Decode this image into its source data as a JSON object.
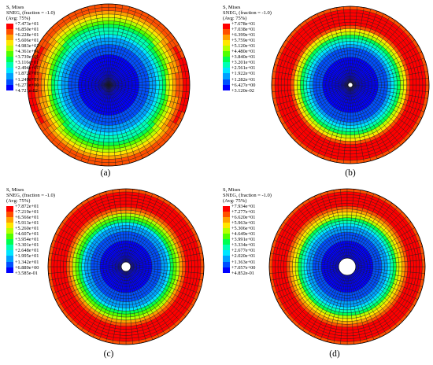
{
  "colors": [
    "#0000ff",
    "#0050ff",
    "#00a0ff",
    "#00e6ff",
    "#00ffb4",
    "#00ff50",
    "#50ff00",
    "#b4ff00",
    "#ffe600",
    "#ffa000",
    "#ff5000",
    "#ff0000"
  ],
  "panels": [
    {
      "id": "a",
      "caption": "(a)",
      "legend": {
        "line1": "S, Mises",
        "line2": "SNEG, (fraction = -1.0)",
        "line3": "(Avg: 75%)",
        "values": [
          "+7.473e+01",
          "+6.850e+01",
          "+6.228e+01",
          "+5.606e+01",
          "+4.983e+01",
          "+4.361e+01",
          "+3.739e+01",
          "+3.116e+01",
          "+2.494e+01",
          "+1.872e+01",
          "+1.249e+01",
          "+6.271e+00",
          "+4.721e-02"
        ]
      },
      "hole_radius_fraction": 0,
      "field": "edge_with_side_lobes"
    },
    {
      "id": "b",
      "caption": "(b)",
      "legend": {
        "line1": "S, Mises",
        "line2": "SNEG, (fraction = -1.0)",
        "line3": "(Avg: 75%)",
        "values": [
          "+7.678e+01",
          "+7.038e+01",
          "+6.399e+01",
          "+5.759e+01",
          "+5.120e+01",
          "+4.480e+01",
          "+3.840e+01",
          "+3.201e+01",
          "+2.561e+01",
          "+1.922e+01",
          "+1.282e+01",
          "+6.427e+00",
          "+3.120e-02"
        ]
      },
      "hole_radius_fraction": 0.03,
      "field": "ring"
    },
    {
      "id": "c",
      "caption": "(c)",
      "legend": {
        "line1": "S, Mises",
        "line2": "SNEG, (fraction = -1.0)",
        "line3": "(Avg: 75%)",
        "values": [
          "+7.872e+01",
          "+7.219e+01",
          "+6.566e+01",
          "+5.913e+01",
          "+5.260e+01",
          "+4.607e+01",
          "+3.954e+01",
          "+3.301e+01",
          "+2.648e+01",
          "+1.995e+01",
          "+1.342e+01",
          "+6.889e+00",
          "+3.585e-01"
        ]
      },
      "hole_radius_fraction": 0.06,
      "field": "ring"
    },
    {
      "id": "d",
      "caption": "(d)",
      "legend": {
        "line1": "S, Mises",
        "line2": "SNEG, (fraction = -1.0)",
        "line3": "(Avg: 75%)",
        "values": [
          "+7.934e+01",
          "+7.277e+01",
          "+6.620e+01",
          "+5.963e+01",
          "+5.306e+01",
          "+4.649e+01",
          "+3.991e+01",
          "+3.334e+01",
          "+2.677e+01",
          "+2.020e+01",
          "+1.363e+01",
          "+7.057e+00",
          "+4.852e-01"
        ]
      },
      "hole_radius_fraction": 0.11,
      "field": "ring"
    }
  ]
}
